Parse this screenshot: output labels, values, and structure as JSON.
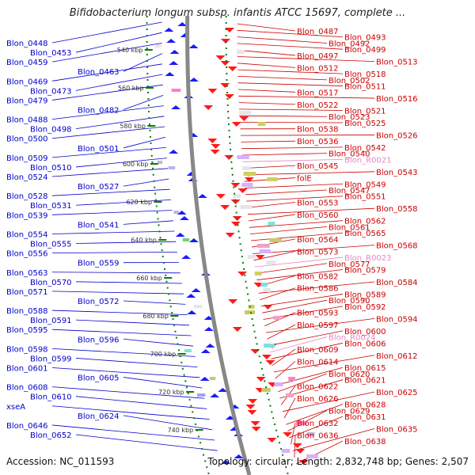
{
  "title": "Bifidobacterium longum subsp. infantis ATCC 15697, complete ...",
  "footer": {
    "accession": "Accession: NC_011593",
    "summary": "Topology: circular; Length: 2,832,748 bp; Genes: 2,507"
  },
  "scale_marks": [
    "540 kbp",
    "560 kbp",
    "580 kbp",
    "600 kbp",
    "620 kbp",
    "640 kbp",
    "660 kbp",
    "680 kbp",
    "700 kbp",
    "720 kbp",
    "740 kbp"
  ],
  "colors": {
    "left_labels": "#0000cc",
    "right_labels": "#cc0000",
    "rna_labels": "#e48ac0",
    "backbone": "#888888",
    "tick": "#0a7a0a"
  },
  "left_labels": [
    "Blon_0448",
    "Blon_0453",
    "Blon_0459",
    "Blon_0463",
    "Blon_0469",
    "Blon_0473",
    "Blon_0479",
    "Blon_0482",
    "Blon_0488",
    "Blon_0498",
    "Blon_0500",
    "Blon_0501",
    "Blon_0509",
    "Blon_0510",
    "Blon_0524",
    "Blon_0527",
    "Blon_0528",
    "Blon_0531",
    "Blon_0539",
    "Blon_0541",
    "Blon_0554",
    "Blon_0555",
    "Blon_0556",
    "Blon_0559",
    "Blon_0563",
    "Blon_0570",
    "Blon_0571",
    "Blon_0572",
    "Blon_0588",
    "Blon_0591",
    "Blon_0595",
    "Blon_0596",
    "Blon_0598",
    "Blon_0599",
    "Blon_0601",
    "Blon_0605",
    "Blon_0608",
    "Blon_0610",
    "xseA",
    "Blon_0624",
    "Blon_0646",
    "Blon_0652"
  ],
  "right_labels": [
    "Blon_0487",
    "Blon_0493",
    "Blon_0492",
    "Blon_0499",
    "Blon_0497",
    "Blon_0513",
    "Blon_0512",
    "Blon_0518",
    "Blon_0502",
    "Blon_0511",
    "Blon_0517",
    "Blon_0516",
    "Blon_0522",
    "Blon_0521",
    "Blon_0523",
    "Blon_0525",
    "Blon_0538",
    "Blon_0526",
    "Blon_0536",
    "Blon_0542",
    "Blon_0540",
    "Blon_R0021",
    "Blon_0545",
    "Blon_0543",
    "folE",
    "Blon_0549",
    "Blon_0547",
    "Blon_0551",
    "Blon_0553",
    "Blon_0558",
    "Blon_0560",
    "Blon_0562",
    "Blon_0561",
    "Blon_0565",
    "Blon_0564",
    "Blon_0568",
    "Blon_0573",
    "Blon_R0023",
    "Blon_0577",
    "Blon_0579",
    "Blon_0582",
    "Blon_0584",
    "Blon_0586",
    "Blon_0589",
    "Blon_0590",
    "Blon_0592",
    "Blon_0593",
    "Blon_0594",
    "Blon_0597",
    "Blon_0600",
    "Blon_R0024",
    "Blon_0606",
    "Blon_0609",
    "Blon_0612",
    "Blon_0614",
    "Blon_0615",
    "Blon_0620",
    "Blon_0621",
    "Blon_0622",
    "Blon_0625",
    "Blon_0626",
    "Blon_0628",
    "Blon_0629",
    "Blon_0631",
    "Blon_0632",
    "Blon_0635",
    "Blon_0636",
    "Blon_0638"
  ],
  "rna_label_names": [
    "Blon_R0021",
    "Blon_R0023",
    "Blon_R0024"
  ]
}
